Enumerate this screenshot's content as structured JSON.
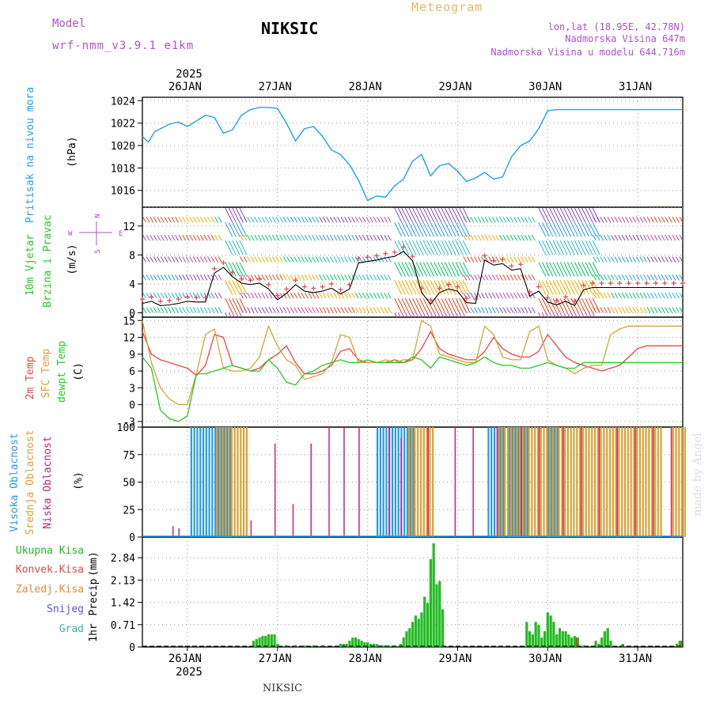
{
  "header": {
    "model_label": "Model",
    "model_name": "wrf-nmm_v3.9.1  e1km",
    "station": "NIKSIC",
    "meteogram": "Meteogram",
    "lonlat": "lon,lat (18.95E, 42.78N)",
    "elevation": "Nadmorska Visina 647m",
    "model_elevation": "Nadmorska Visina u modelu 644.716m",
    "footer_station": "NIKSIC",
    "watermark": "made by Angel"
  },
  "colors": {
    "pressure": "#1fa3e8",
    "wind_label": "#22cc22",
    "compass": "#b04fd8",
    "temp2m": "#ee4444",
    "sfc": "#d9a23a",
    "dewpt": "#22cc22",
    "high_cloud": "#2299ee",
    "mid_cloud": "#e0a030",
    "low_cloud": "#cc2277",
    "total_precip": "#22bb22",
    "konv": "#ee4444",
    "zaledj": "#ee8833",
    "snow": "#5555ee",
    "grad": "#33bbaa",
    "wind_speed": "#000000",
    "gust": "#ee4444"
  },
  "chart_data": [
    {
      "id": "pressure",
      "type": "line",
      "ylabel": "Pritisak na nivou mora",
      "unit": "(hPa)",
      "ylim": [
        1014.5,
        1024.3
      ],
      "yticks": [
        "1016",
        "1018",
        "1020",
        "1022",
        "1024"
      ],
      "x_hours": [
        0,
        2,
        4,
        6,
        9,
        12,
        15,
        18,
        21,
        24,
        27,
        30,
        33,
        36,
        39,
        42,
        45,
        48,
        51,
        54,
        57,
        60,
        63,
        66,
        69,
        72,
        75,
        78,
        81,
        84,
        87,
        90,
        93,
        96,
        99,
        102,
        105,
        108,
        111,
        114,
        117,
        120,
        123,
        126,
        129,
        132,
        135,
        138,
        141,
        144,
        147,
        150,
        153,
        156,
        159,
        162,
        165,
        168,
        171,
        174,
        177,
        180
      ],
      "values": [
        1020.8,
        1020.3,
        1021.2,
        1021.5,
        1021.9,
        1022.1,
        1021.7,
        1022.2,
        1022.7,
        1022.5,
        1021.1,
        1021.4,
        1022.7,
        1023.2,
        1023.4,
        1023.4,
        1023.3,
        1022.0,
        1020.4,
        1021.5,
        1021.7,
        1020.8,
        1019.6,
        1019.2,
        1018.3,
        1016.9,
        1015.1,
        1015.5,
        1015.4,
        1016.4,
        1017.0,
        1018.6,
        1019.2,
        1017.3,
        1018.2,
        1018.4,
        1017.7,
        1016.8,
        1017.1,
        1017.6,
        1017.0,
        1017.2,
        1019.0,
        1020.0,
        1020.4,
        1021.5,
        1023.1,
        1023.2,
        1023.2,
        1023.2,
        1023.2,
        1023.2,
        1023.2,
        1023.2,
        1023.2,
        1023.2,
        1023.2,
        1023.2,
        1023.2,
        1023.2,
        1023.2,
        1023.2
      ],
      "note": "values past hour 141 are flat to the right edge"
    },
    {
      "id": "wind",
      "type": "line",
      "ylabel_1": "10m Vjetar",
      "ylabel_2": "Brzina i Pravac",
      "unit": "(m/s)",
      "compass": {
        "n": "N",
        "w": "W",
        "e": "E",
        "s": "S"
      },
      "ylim": [
        -0.6,
        14.6
      ],
      "yticks": [
        "0",
        "4",
        "8",
        "12"
      ],
      "barb_rows": [
        0,
        2,
        4.5,
        7,
        10,
        12.5,
        14.5
      ],
      "x_hours": [
        0,
        3,
        6,
        9,
        12,
        15,
        18,
        21,
        24,
        27,
        30,
        33,
        36,
        39,
        42,
        45,
        48,
        51,
        54,
        57,
        60,
        63,
        66,
        69,
        72,
        75,
        78,
        81,
        84,
        87,
        90,
        93,
        96,
        99,
        102,
        105,
        108,
        111,
        114,
        117,
        120,
        123,
        126,
        129,
        132,
        135,
        138,
        141,
        144,
        147,
        150,
        153,
        156,
        159,
        162,
        165,
        168,
        171,
        174,
        177,
        180
      ],
      "speed": [
        1.3,
        1.6,
        1.0,
        1.1,
        1.3,
        1.6,
        1.5,
        1.5,
        5.5,
        6.3,
        5.0,
        4.1,
        3.9,
        4.1,
        3.3,
        1.8,
        2.7,
        3.9,
        3.0,
        2.8,
        3.0,
        3.4,
        2.6,
        3.3,
        6.9,
        7.1,
        7.3,
        7.6,
        7.8,
        8.5,
        7.2,
        2.8,
        1.2,
        2.8,
        3.3,
        3.0,
        1.4,
        1.3,
        7.3,
        6.6,
        6.8,
        5.9,
        6.1,
        2.3,
        3.0,
        1.5,
        1.1,
        1.6,
        1.0,
        3.2,
        3.5,
        3.5,
        3.5,
        3.5,
        3.5,
        3.5,
        3.5,
        3.5,
        3.5,
        3.5,
        3.5
      ]
    },
    {
      "id": "temperature",
      "type": "line",
      "ylabel_1": "2m Temp",
      "ylabel_2": "SFC Temp",
      "ylabel_3": "dewpt Temp",
      "unit": "(C)",
      "ylim": [
        -4,
        15.6
      ],
      "yticks": [
        "-3",
        "0",
        "3",
        "6",
        "9",
        "12",
        "15"
      ],
      "x_hours": [
        0,
        3,
        6,
        9,
        12,
        15,
        18,
        21,
        24,
        27,
        30,
        33,
        36,
        39,
        42,
        45,
        48,
        51,
        54,
        57,
        60,
        63,
        66,
        69,
        72,
        75,
        78,
        81,
        84,
        87,
        90,
        93,
        96,
        99,
        102,
        105,
        108,
        111,
        114,
        117,
        120,
        123,
        126,
        129,
        132,
        135,
        138,
        141,
        144,
        147,
        150,
        153,
        156,
        159,
        162,
        165,
        168,
        171,
        174,
        177,
        180
      ],
      "series": [
        {
          "name": "2m Temp",
          "values": [
            13.0,
            9.0,
            8.0,
            7.5,
            7.0,
            6.5,
            5.2,
            7.0,
            12.5,
            12.0,
            7.0,
            6.5,
            6.0,
            6.5,
            8.0,
            9.0,
            10.5,
            7.5,
            5.5,
            5.5,
            6.0,
            7.0,
            9.5,
            10.0,
            8.0,
            7.5,
            7.5,
            7.5,
            8.0,
            7.5,
            8.0,
            10.0,
            13.0,
            10.0,
            9.0,
            8.5,
            8.0,
            8.0,
            9.5,
            12.0,
            10.0,
            9.0,
            8.5,
            8.5,
            9.5,
            12.5,
            10.5,
            8.5,
            7.5,
            7.0,
            6.5,
            6.0,
            6.5,
            7.0,
            8.5,
            10.0,
            10.5,
            10.5,
            10.5,
            10.5,
            10.5
          ]
        },
        {
          "name": "SFC Temp",
          "values": [
            15.0,
            7.5,
            3.0,
            1.0,
            0.0,
            0.0,
            5.5,
            12.5,
            13.5,
            6.5,
            6.0,
            6.0,
            6.5,
            8.5,
            14.0,
            10.5,
            8.0,
            7.0,
            4.5,
            5.0,
            5.5,
            7.5,
            12.5,
            12.0,
            7.5,
            7.5,
            7.5,
            8.0,
            7.5,
            8.0,
            8.0,
            15.0,
            14.0,
            9.0,
            8.5,
            8.0,
            7.5,
            7.5,
            14.0,
            12.5,
            8.5,
            8.0,
            8.0,
            13.0,
            14.0,
            8.0,
            7.0,
            6.5,
            5.5,
            6.5,
            7.0,
            7.0,
            12.5,
            13.5,
            14.0,
            14.0,
            14.0,
            14.0,
            14.0,
            14.0,
            14.0
          ]
        },
        {
          "name": "dewpt Temp",
          "values": [
            8.5,
            6.5,
            -1.0,
            -2.5,
            -3.0,
            -2.0,
            5.5,
            5.5,
            6.0,
            6.5,
            7.0,
            6.5,
            6.0,
            6.0,
            8.0,
            6.5,
            4.0,
            3.5,
            5.5,
            6.0,
            7.0,
            7.5,
            8.0,
            7.5,
            7.5,
            8.0,
            7.5,
            7.5,
            7.5,
            7.5,
            8.5,
            8.0,
            6.5,
            8.5,
            8.0,
            7.5,
            7.0,
            7.5,
            8.5,
            7.5,
            7.0,
            7.0,
            6.5,
            6.5,
            7.0,
            7.5,
            7.0,
            6.5,
            6.5,
            7.5,
            7.5,
            7.5,
            7.5,
            7.5,
            7.5,
            7.5,
            7.5,
            7.5,
            7.5,
            7.5,
            7.5
          ]
        }
      ]
    },
    {
      "id": "cloud",
      "type": "bar",
      "ylabel_1": "Visoka Oblacnost",
      "ylabel_2": "Srednja Oblacnost",
      "ylabel_3": "Niska Oblacnost",
      "unit": "(%)",
      "ylim": [
        0,
        100
      ],
      "yticks": [
        "0",
        "25",
        "50",
        "75",
        "100"
      ],
      "high_cloud_hours": [
        [
          16,
          29
        ],
        [
          78,
          90
        ],
        [
          115,
          120
        ],
        [
          122,
          128
        ],
        [
          135,
          138
        ]
      ],
      "mid_cloud_hours": [
        [
          24,
          34
        ],
        [
          88,
          96
        ],
        [
          118,
          172
        ],
        [
          176,
          180
        ]
      ],
      "low_cloud_spikes": [
        [
          10,
          10
        ],
        [
          12,
          8
        ],
        [
          36,
          15
        ],
        [
          44,
          85
        ],
        [
          50,
          30
        ],
        [
          56,
          85
        ],
        [
          62,
          100
        ],
        [
          67,
          100
        ],
        [
          72,
          100
        ],
        [
          82,
          100
        ],
        [
          86,
          90
        ],
        [
          95,
          100
        ],
        [
          104,
          100
        ],
        [
          110,
          100
        ],
        [
          118,
          100
        ],
        [
          126,
          100
        ],
        [
          132,
          100
        ],
        [
          140,
          100
        ],
        [
          146,
          100
        ],
        [
          152,
          100
        ],
        [
          158,
          100
        ],
        [
          164,
          100
        ],
        [
          170,
          100
        ],
        [
          176,
          100
        ]
      ]
    },
    {
      "id": "precip",
      "type": "bar",
      "ylabel_1": "1hr",
      "ylabel_2": "Precip",
      "unit": "(mm)",
      "legend": [
        "Ukupna Kisa",
        "Konvek.Kisa",
        "Zaledj.Kisa",
        "Snijeg",
        "Grad"
      ],
      "ylim": [
        0,
        3.5
      ],
      "yticks": [
        "0",
        "0.71",
        "1.42",
        "2.13",
        "2.84"
      ],
      "bars": [
        [
          37,
          0.2
        ],
        [
          38,
          0.25
        ],
        [
          39,
          0.3
        ],
        [
          40,
          0.35
        ],
        [
          41,
          0.35
        ],
        [
          42,
          0.4
        ],
        [
          43,
          0.4
        ],
        [
          44,
          0.4
        ],
        [
          45,
          0.1
        ],
        [
          48,
          0.05
        ],
        [
          51,
          0.05
        ],
        [
          54,
          0.05
        ],
        [
          57,
          0.05
        ],
        [
          60,
          0.05
        ],
        [
          66,
          0.1
        ],
        [
          67,
          0.1
        ],
        [
          68,
          0.1
        ],
        [
          69,
          0.2
        ],
        [
          70,
          0.3
        ],
        [
          71,
          0.3
        ],
        [
          72,
          0.25
        ],
        [
          73,
          0.2
        ],
        [
          74,
          0.15
        ],
        [
          75,
          0.15
        ],
        [
          76,
          0.1
        ],
        [
          77,
          0.1
        ],
        [
          78,
          0.1
        ],
        [
          79,
          0.05
        ],
        [
          80,
          0.05
        ],
        [
          81,
          0.05
        ],
        [
          82,
          0.05
        ],
        [
          84,
          0.05
        ],
        [
          86,
          0.1
        ],
        [
          87,
          0.3
        ],
        [
          88,
          0.5
        ],
        [
          89,
          0.6
        ],
        [
          90,
          0.8
        ],
        [
          91,
          1.0
        ],
        [
          92,
          0.9
        ],
        [
          93,
          1.1
        ],
        [
          94,
          1.6
        ],
        [
          95,
          1.4
        ],
        [
          96,
          2.8
        ],
        [
          97,
          3.3
        ],
        [
          98,
          2.0
        ],
        [
          99,
          2.1
        ],
        [
          100,
          1.2
        ],
        [
          128,
          0.8
        ],
        [
          129,
          0.5
        ],
        [
          130,
          0.4
        ],
        [
          131,
          0.8
        ],
        [
          132,
          0.7
        ],
        [
          133,
          0.3
        ],
        [
          134,
          0.5
        ],
        [
          135,
          1.1
        ],
        [
          136,
          1.0
        ],
        [
          137,
          0.8
        ],
        [
          138,
          0.4
        ],
        [
          139,
          0.6
        ],
        [
          140,
          0.5
        ],
        [
          141,
          0.5
        ],
        [
          142,
          0.4
        ],
        [
          143,
          0.3
        ],
        [
          144,
          0.35
        ],
        [
          145,
          0.3
        ],
        [
          147,
          0.05
        ],
        [
          151,
          0.2
        ],
        [
          152,
          0.1
        ],
        [
          153,
          0.3
        ],
        [
          154,
          0.5
        ],
        [
          155,
          0.6
        ],
        [
          156,
          0.2
        ],
        [
          160,
          0.1
        ],
        [
          178,
          0.1
        ],
        [
          179,
          0.2
        ]
      ],
      "konv_bars": [
        [
          144,
          0.3
        ],
        [
          179,
          0.2
        ]
      ]
    }
  ],
  "x_axis": {
    "days": [
      "26JAN",
      "27JAN",
      "28JAN",
      "29JAN",
      "30JAN",
      "31JAN"
    ],
    "day_hours": [
      15,
      45,
      75,
      105,
      135,
      165
    ],
    "year": "2025",
    "total_hours": 180
  }
}
